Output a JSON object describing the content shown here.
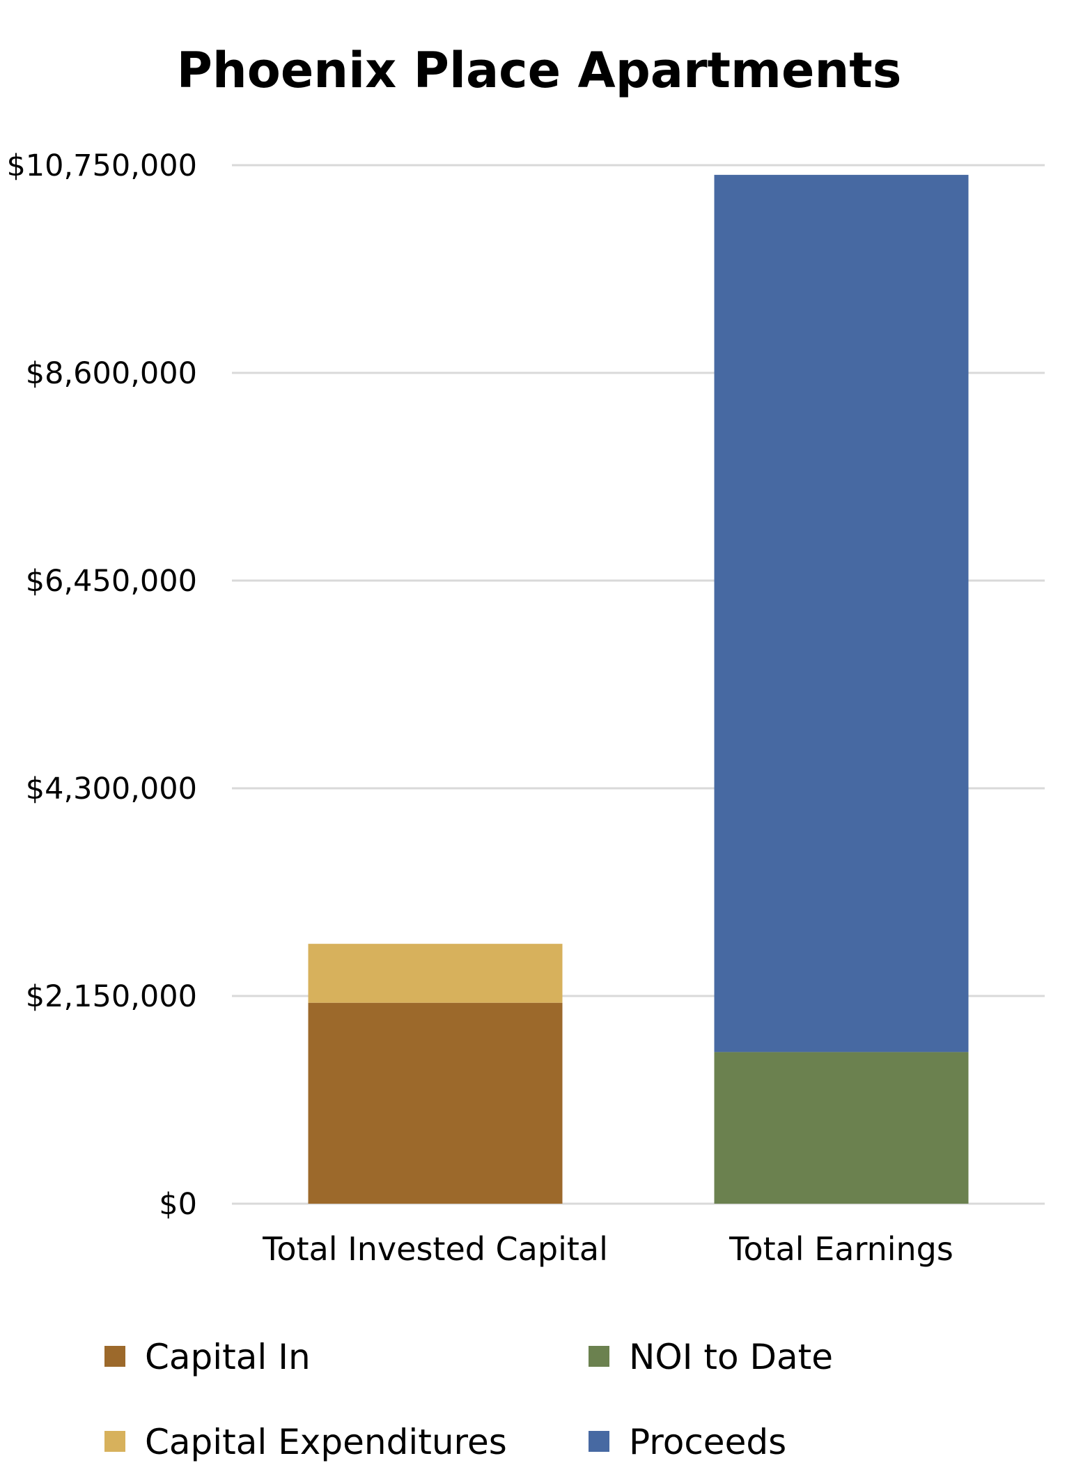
{
  "chart_data": {
    "type": "bar",
    "stacked": true,
    "title": "Phoenix Place Apartments",
    "xlabel": "",
    "ylabel": "",
    "categories": [
      "Total Invested Capital",
      "Total Earnings"
    ],
    "ylim": [
      0,
      10750000
    ],
    "yticks": [
      0,
      2150000,
      4300000,
      6450000,
      8600000,
      10750000
    ],
    "ytick_labels": [
      "$0",
      "$2,150,000",
      "$4,300,000",
      "$6,450,000",
      "$8,600,000",
      "$10,750,000"
    ],
    "grid": true,
    "legend_position": "bottom",
    "series": [
      {
        "name": "Capital In",
        "color": "#9c692b",
        "values": [
          2080000,
          0
        ]
      },
      {
        "name": "Capital Expenditures",
        "color": "#d7b15c",
        "values": [
          610000,
          0
        ]
      },
      {
        "name": "NOI to Date",
        "color": "#6b814f",
        "values": [
          0,
          1570000
        ]
      },
      {
        "name": "Proceeds",
        "color": "#4769a2",
        "values": [
          0,
          9080000
        ]
      }
    ]
  }
}
